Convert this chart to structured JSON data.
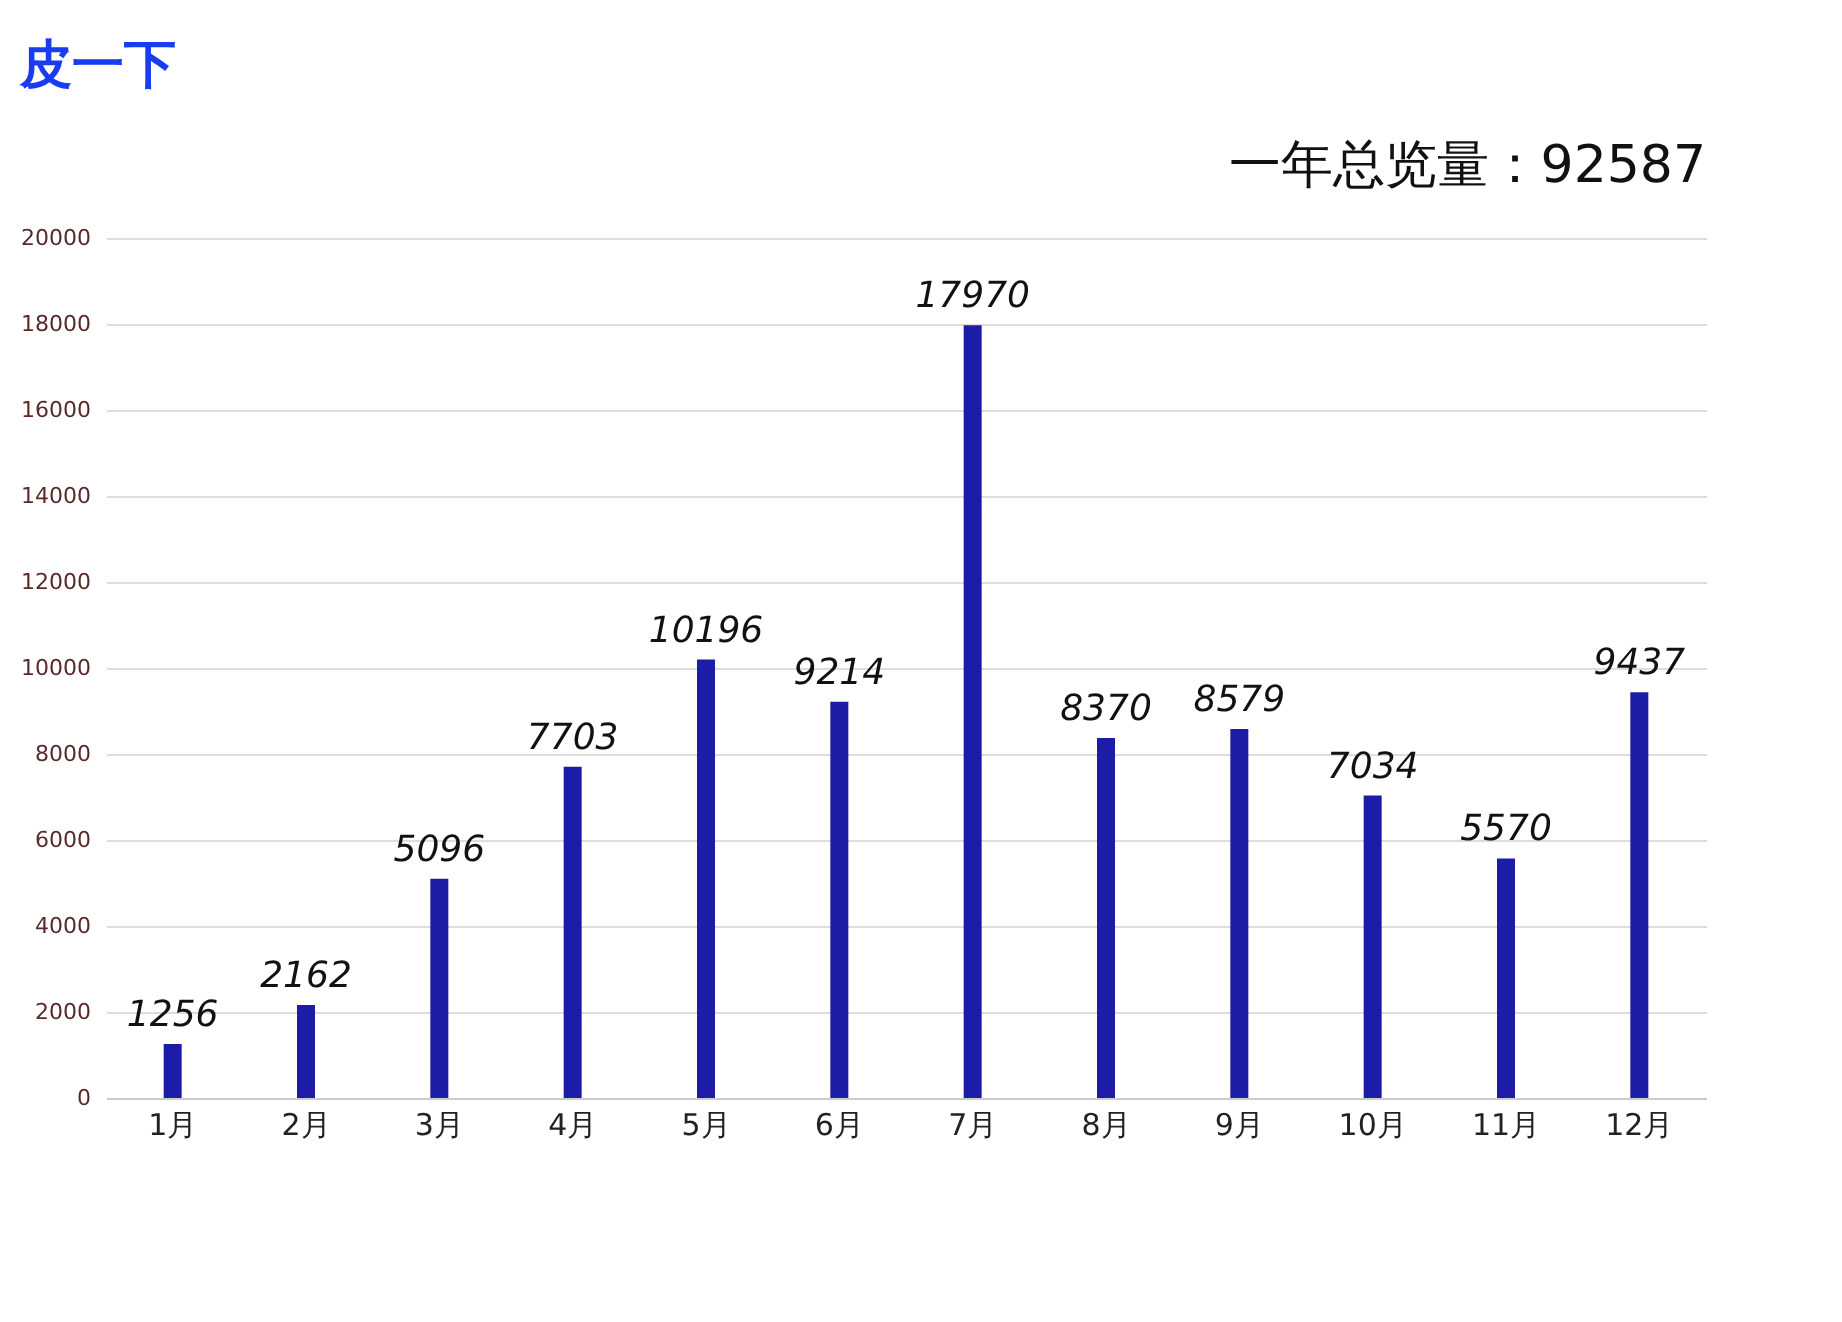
{
  "chart_data": {
    "type": "bar",
    "title": "皮一下",
    "subtitle": "一年总览量：92587",
    "categories": [
      "1月",
      "2月",
      "3月",
      "4月",
      "5月",
      "6月",
      "7月",
      "8月",
      "9月",
      "10月",
      "11月",
      "12月"
    ],
    "values": [
      1256,
      2162,
      5096,
      7703,
      10196,
      9214,
      17970,
      8370,
      8579,
      7034,
      5570,
      9437
    ],
    "color": "#1c1ca6",
    "ylim": [
      0,
      20000
    ],
    "yticks": [
      0,
      2000,
      4000,
      6000,
      8000,
      10000,
      12000,
      14000,
      16000,
      18000,
      20000
    ],
    "grid": "y",
    "data_labels": true
  }
}
